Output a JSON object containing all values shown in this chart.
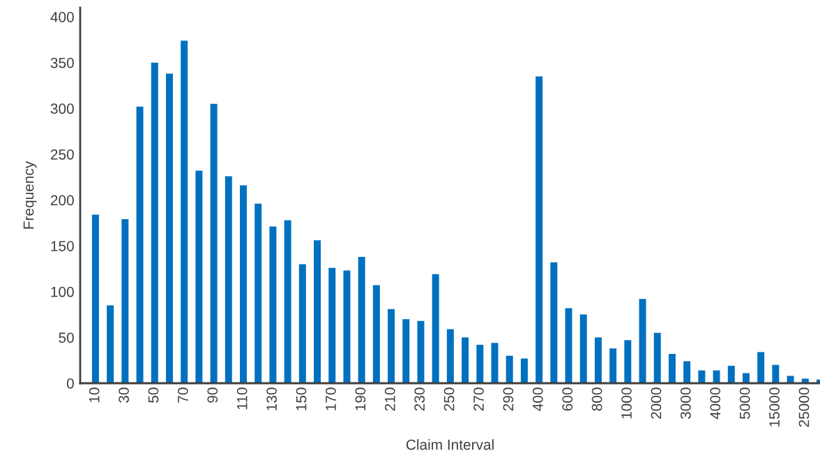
{
  "chart_data": {
    "type": "bar",
    "xlabel": "Claim Interval",
    "ylabel": "Frequency",
    "categories": [
      "10",
      null,
      "30",
      null,
      "50",
      null,
      "70",
      null,
      "90",
      null,
      "110",
      null,
      "130",
      null,
      "150",
      null,
      "170",
      null,
      "190",
      null,
      "210",
      null,
      "230",
      null,
      "250",
      null,
      "270",
      null,
      "290",
      null,
      "400",
      null,
      "600",
      null,
      "800",
      null,
      "1000",
      null,
      "2000",
      null,
      "3000",
      null,
      "4000",
      null,
      "5000",
      null,
      "15000",
      null,
      "25000",
      null
    ],
    "values": [
      184,
      85,
      179,
      302,
      350,
      338,
      374,
      232,
      305,
      226,
      216,
      196,
      171,
      178,
      130,
      156,
      126,
      123,
      138,
      107,
      81,
      70,
      68,
      119,
      59,
      50,
      42,
      44,
      30,
      27,
      335,
      132,
      82,
      75,
      50,
      38,
      47,
      92,
      55,
      32,
      24,
      14,
      14,
      19,
      11,
      34,
      20,
      8,
      5,
      4
    ],
    "color": "#0070c0",
    "ylim": [
      0,
      410
    ],
    "yticks": [
      0,
      50,
      100,
      150,
      200,
      250,
      300,
      350,
      400
    ],
    "grid": false,
    "legend": false
  }
}
